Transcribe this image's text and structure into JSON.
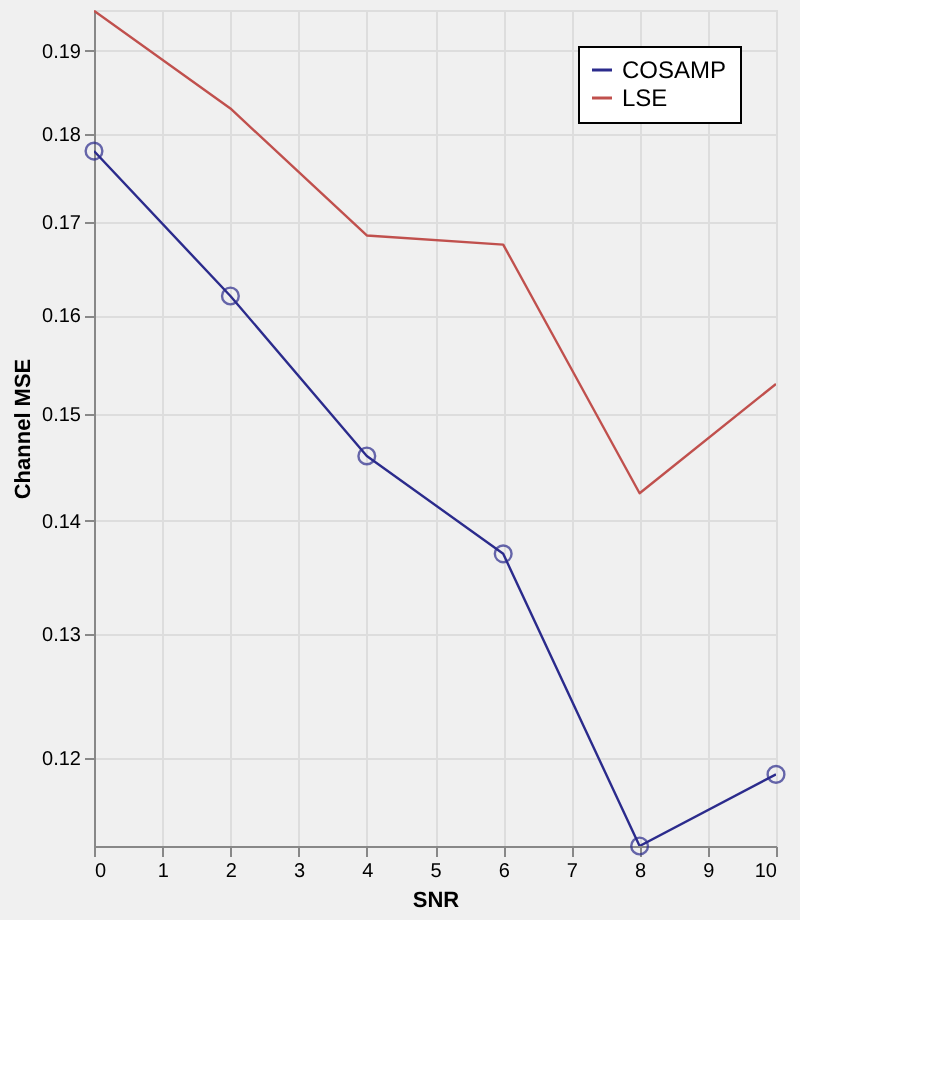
{
  "chart_data": {
    "type": "line",
    "xlabel": "SNR",
    "ylabel": "Channel MSE",
    "x": [
      0,
      2,
      4,
      6,
      8,
      10
    ],
    "series": [
      {
        "name": "COSAMP",
        "color": "#2b2b8c",
        "marker": "circle",
        "values": [
          0.178,
          0.162,
          0.146,
          0.137,
          0.1133,
          0.1187
        ]
      },
      {
        "name": "LSE",
        "color": "#c0504d",
        "marker": "none",
        "values": [
          0.195,
          0.183,
          0.1685,
          0.1675,
          0.1425,
          0.153
        ]
      }
    ],
    "xlim": [
      0,
      10
    ],
    "xticks": [
      0,
      1,
      2,
      3,
      4,
      5,
      6,
      7,
      8,
      9,
      10
    ],
    "ylim": [
      0.1133,
      0.1951
    ],
    "yticks": [
      0.12,
      0.13,
      0.14,
      0.15,
      0.16,
      0.17,
      0.18,
      0.19
    ],
    "log": "y",
    "grid": true,
    "legend": "top right",
    "line_style": "solid"
  }
}
